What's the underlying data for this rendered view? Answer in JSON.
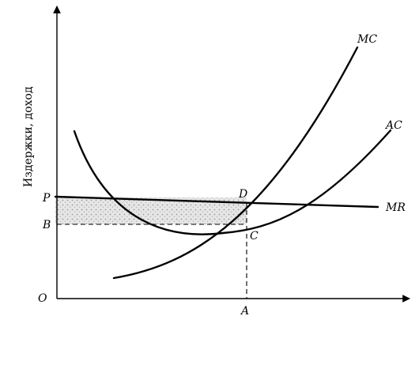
{
  "axes": {
    "y_label": "Издержки, доход",
    "origin_label": "O"
  },
  "price_labels": {
    "p": "P",
    "b": "B",
    "a": "A"
  },
  "points": {
    "d": "D",
    "c": "C"
  },
  "curves": {
    "mc": "MC",
    "ac": "AC",
    "mr": "MR"
  },
  "colors": {
    "line": "#000000",
    "shade": "#d9d9d9"
  }
}
